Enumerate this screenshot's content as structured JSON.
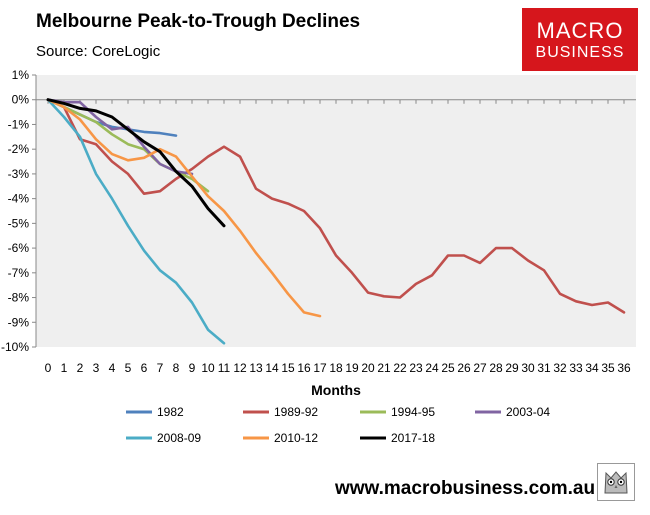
{
  "header": {
    "title": "Melbourne Peak-to-Trough Declines",
    "source": "Source: CoreLogic"
  },
  "logo": {
    "line1": "MACRO",
    "line2": "BUSINESS"
  },
  "footer": {
    "website": "www.macrobusiness.com.au",
    "owl_icon": "owl-icon"
  },
  "chart_data": {
    "type": "line",
    "title": "Melbourne Peak-to-Trough Declines",
    "xlabel": "Months",
    "ylabel": "",
    "xlim": [
      0,
      36
    ],
    "ylim": [
      -10,
      1
    ],
    "y_ticks": [
      1,
      0,
      -1,
      -2,
      -3,
      -4,
      -5,
      -6,
      -7,
      -8,
      -9,
      -10
    ],
    "y_tick_labels": [
      "1%",
      "0%",
      "-1%",
      "-2%",
      "-3%",
      "-4%",
      "-5%",
      "-6%",
      "-7%",
      "-8%",
      "-9%",
      "-10%"
    ],
    "x_ticks": [
      0,
      1,
      2,
      3,
      4,
      5,
      6,
      7,
      8,
      9,
      10,
      11,
      12,
      13,
      14,
      15,
      16,
      17,
      18,
      19,
      20,
      21,
      22,
      23,
      24,
      25,
      26,
      27,
      28,
      29,
      30,
      31,
      32,
      33,
      34,
      35,
      36
    ],
    "grid": false,
    "legend_position": "bottom",
    "series": [
      {
        "name": "1982",
        "color": "#4f81bd",
        "values": [
          0,
          -0.3,
          -0.6,
          -0.9,
          -1.1,
          -1.2,
          -1.3,
          -1.35,
          -1.45
        ]
      },
      {
        "name": "1989-92",
        "color": "#c0504d",
        "values": [
          0,
          -0.3,
          -1.6,
          -1.8,
          -2.5,
          -3.0,
          -3.8,
          -3.7,
          -3.2,
          -2.8,
          -2.3,
          -1.9,
          -2.3,
          -3.6,
          -4.0,
          -4.2,
          -4.5,
          -5.2,
          -6.3,
          -7.0,
          -7.8,
          -7.95,
          -8.0,
          -7.45,
          -7.1,
          -6.3,
          -6.3,
          -6.6,
          -6.0,
          -6.0,
          -6.5,
          -6.9,
          -7.85,
          -8.15,
          -8.3,
          -8.2,
          -8.6
        ]
      },
      {
        "name": "1994-95",
        "color": "#9bbb59",
        "values": [
          0,
          -0.3,
          -0.6,
          -0.9,
          -1.4,
          -1.8,
          -2.0,
          -2.6,
          -2.9,
          -3.2,
          -3.7
        ]
      },
      {
        "name": "2003-04",
        "color": "#8064a2",
        "values": [
          0,
          -0.1,
          -0.1,
          -0.7,
          -1.2,
          -1.1,
          -1.9,
          -2.6,
          -2.9,
          -3.0
        ]
      },
      {
        "name": "2008-09",
        "color": "#4bacc6",
        "values": [
          0,
          -0.7,
          -1.5,
          -3.0,
          -4.0,
          -5.1,
          -6.1,
          -6.9,
          -7.4,
          -8.2,
          -9.3,
          -9.85
        ]
      },
      {
        "name": "2010-12",
        "color": "#f79646",
        "values": [
          0,
          -0.3,
          -0.8,
          -1.6,
          -2.2,
          -2.45,
          -2.35,
          -2.0,
          -2.3,
          -3.1,
          -3.9,
          -4.5,
          -5.3,
          -6.2,
          -7.0,
          -7.85,
          -8.6,
          -8.75
        ]
      },
      {
        "name": "2017-18",
        "color": "#000000",
        "values": [
          0,
          -0.15,
          -0.35,
          -0.45,
          -0.7,
          -1.2,
          -1.7,
          -2.1,
          -2.9,
          -3.5,
          -4.4,
          -5.1
        ]
      }
    ]
  }
}
